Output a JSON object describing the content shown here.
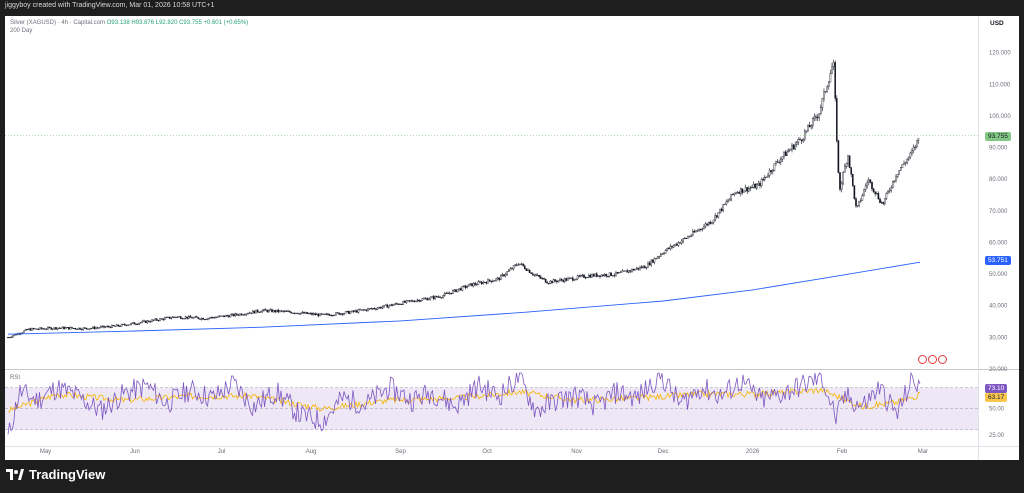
{
  "caption": "jiggyboy created with TradingView.com, Mar 01, 2026 10:58 UTC+1",
  "legend": {
    "symbol": "Silver (XAGUSD) · 4h · Capital.com",
    "ohlc": "O93.138 H93.876 L92.820 C93.755",
    "change": "+0.601 (+0.65%)",
    "ma": "200 Day"
  },
  "rsi_title": "RSI",
  "currency": "USD",
  "tags": {
    "price": "93.755",
    "ma": "53.751",
    "rsi": "73.10",
    "rsi_ma": "63.17"
  },
  "branding": "TradingView",
  "colors": {
    "candle": "#131722",
    "ma": "#2962ff",
    "rsi": "#7e57c2",
    "rsi_ma": "#f7b500",
    "rsi_band": "#ede7f6",
    "price_tag": "#83c784",
    "events": "#e4393b"
  },
  "chart_data": [
    {
      "type": "line",
      "title": "Silver (XAGUSD) · 4h · Capital.com",
      "x_tick_labels": [
        "May",
        "Jun",
        "Jul",
        "Aug",
        "Sep",
        "Oct",
        "Nov",
        "Dec",
        "2026",
        "Feb",
        "Mar"
      ],
      "y_tick_labels": [
        "20.000",
        "30.000",
        "40.000",
        "50.000",
        "60.000",
        "70.000",
        "80.000",
        "90.000",
        "100.000",
        "110.000",
        "120.000"
      ],
      "y_range": [
        20,
        124
      ],
      "last_price": 93.755,
      "series": [
        {
          "name": "Silver (XAGUSD)",
          "style": "candles",
          "x": [
            "2025-04-18",
            "2025-04-25",
            "2025-05-05",
            "2025-05-15",
            "2025-05-25",
            "2025-06-05",
            "2025-06-15",
            "2025-06-25",
            "2025-07-05",
            "2025-07-15",
            "2025-07-25",
            "2025-08-05",
            "2025-08-15",
            "2025-08-25",
            "2025-09-05",
            "2025-09-15",
            "2025-09-25",
            "2025-10-05",
            "2025-10-12",
            "2025-10-17",
            "2025-10-22",
            "2025-10-30",
            "2025-11-05",
            "2025-11-15",
            "2025-11-25",
            "2025-12-01",
            "2025-12-10",
            "2025-12-18",
            "2025-12-26",
            "2026-01-03",
            "2026-01-10",
            "2026-01-18",
            "2026-01-24",
            "2026-01-29",
            "2026-01-31",
            "2026-02-03",
            "2026-02-06",
            "2026-02-10",
            "2026-02-15",
            "2026-02-20",
            "2026-02-25",
            "2026-02-28"
          ],
          "y": [
            30.0,
            32.5,
            33.0,
            32.8,
            33.5,
            35.0,
            36.5,
            36.0,
            37.0,
            38.5,
            38.0,
            37.0,
            38.0,
            39.5,
            41.5,
            43.0,
            46.5,
            48.5,
            53.5,
            50.0,
            47.5,
            48.5,
            49.5,
            50.0,
            52.5,
            57.0,
            62.0,
            67.0,
            76.0,
            78.0,
            86.0,
            93.0,
            101.0,
            117.0,
            76.0,
            88.0,
            70.0,
            80.0,
            72.0,
            82.0,
            88.0,
            93.755
          ]
        },
        {
          "name": "200 Day",
          "x": [
            "2025-04-18",
            "2025-06-01",
            "2025-07-15",
            "2025-09-01",
            "2025-10-15",
            "2025-12-01",
            "2026-01-01",
            "2026-01-31",
            "2026-02-28"
          ],
          "y": [
            31.0,
            32.0,
            33.2,
            35.2,
            38.0,
            41.5,
            45.0,
            49.5,
            53.751
          ]
        }
      ]
    },
    {
      "type": "line",
      "title": "RSI",
      "y_tick_labels": [
        "25.00",
        "50.00"
      ],
      "y_range": [
        20,
        85
      ],
      "bands": [
        30,
        70
      ],
      "last_value": 73.1,
      "series": [
        {
          "name": "RSI",
          "x": [
            "2025-04-18",
            "2025-04-22",
            "2025-04-28",
            "2025-05-05",
            "2025-05-12",
            "2025-05-20",
            "2025-05-28",
            "2025-06-05",
            "2025-06-12",
            "2025-06-20",
            "2025-06-28",
            "2025-07-05",
            "2025-07-12",
            "2025-07-20",
            "2025-07-28",
            "2025-08-05",
            "2025-08-12",
            "2025-08-20",
            "2025-08-28",
            "2025-09-05",
            "2025-09-12",
            "2025-09-20",
            "2025-09-28",
            "2025-10-05",
            "2025-10-12",
            "2025-10-18",
            "2025-10-25",
            "2025-11-01",
            "2025-11-08",
            "2025-11-15",
            "2025-11-22",
            "2025-11-30",
            "2025-12-07",
            "2025-12-14",
            "2025-12-21",
            "2025-12-28",
            "2026-01-04",
            "2026-01-11",
            "2026-01-18",
            "2026-01-25",
            "2026-01-30",
            "2026-02-02",
            "2026-02-08",
            "2026-02-14",
            "2026-02-20",
            "2026-02-25",
            "2026-02-28"
          ],
          "y": [
            22,
            66,
            58,
            70,
            62,
            48,
            64,
            72,
            55,
            68,
            60,
            74,
            52,
            66,
            44,
            38,
            60,
            54,
            70,
            58,
            66,
            52,
            72,
            62,
            80,
            48,
            58,
            62,
            52,
            66,
            60,
            82,
            54,
            70,
            62,
            76,
            58,
            64,
            72,
            80,
            40,
            62,
            52,
            70,
            44,
            76,
            73.1
          ]
        },
        {
          "name": "RSI-based MA",
          "x": [
            "2025-04-18",
            "2025-05-05",
            "2025-05-28",
            "2025-06-20",
            "2025-07-12",
            "2025-08-05",
            "2025-08-28",
            "2025-09-20",
            "2025-10-12",
            "2025-11-01",
            "2025-11-22",
            "2025-12-14",
            "2026-01-04",
            "2026-01-25",
            "2026-02-08",
            "2026-02-20",
            "2026-02-28"
          ],
          "y": [
            48,
            64,
            58,
            62,
            62,
            50,
            58,
            60,
            66,
            58,
            60,
            64,
            64,
            68,
            52,
            56,
            63.17
          ]
        }
      ]
    }
  ]
}
